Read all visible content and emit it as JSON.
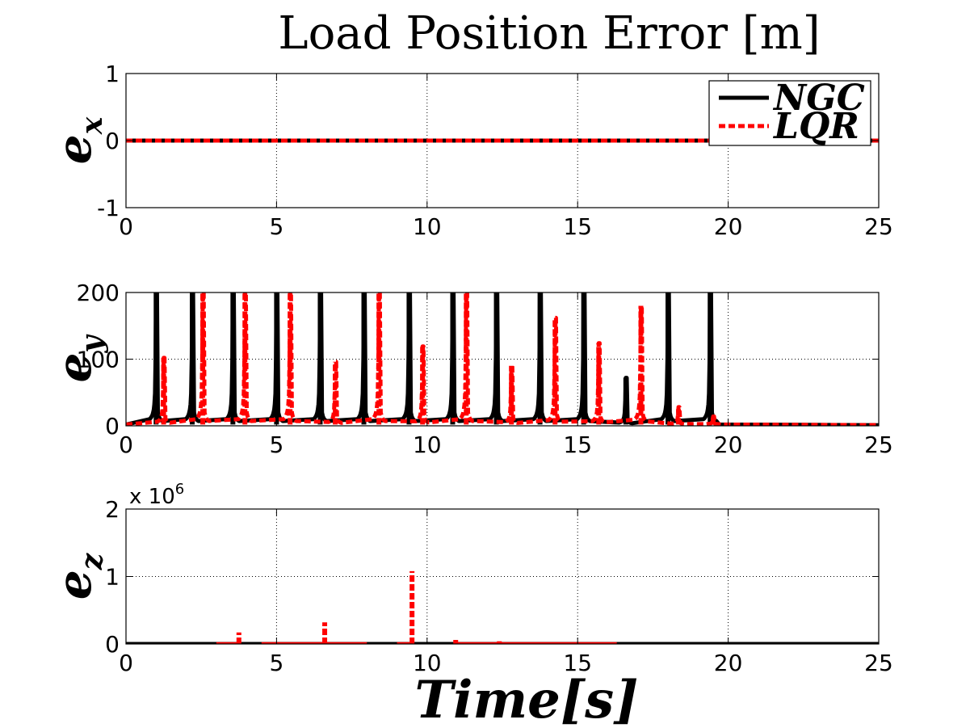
{
  "chart_data": [
    {
      "type": "line",
      "title": "Load Position Error [m]",
      "ylabel": "e_x",
      "ylabel_main": "e",
      "ylabel_sub": "x",
      "xlim": [
        0,
        25
      ],
      "ylim": [
        -1,
        1
      ],
      "xticks": [
        "0",
        "5",
        "10",
        "15",
        "20",
        "25"
      ],
      "yticks": [
        "-1",
        "0",
        "1"
      ],
      "grid": true,
      "legend": {
        "placement": "top-right",
        "entries": [
          "NGC",
          "LQR"
        ]
      },
      "series": [
        {
          "name": "NGC",
          "color": "#000000",
          "style": "solid",
          "x": [
            0,
            25
          ],
          "y": [
            0,
            0
          ]
        },
        {
          "name": "LQR",
          "color": "#ff0000",
          "style": "dashed",
          "x": [
            0,
            25
          ],
          "y": [
            0,
            0
          ]
        }
      ]
    },
    {
      "type": "line",
      "ylabel": "e_y",
      "ylabel_main": "e",
      "ylabel_sub": "y",
      "xlim": [
        0,
        25
      ],
      "ylim": [
        0,
        200
      ],
      "xticks": [
        "0",
        "5",
        "10",
        "15",
        "20",
        "25"
      ],
      "yticks": [
        "0",
        "100",
        "200"
      ],
      "grid": true,
      "series": [
        {
          "name": "NGC",
          "color": "#000000",
          "style": "solid",
          "peaks": [
            [
              1.0,
              200
            ],
            [
              2.2,
              200
            ],
            [
              3.55,
              200
            ],
            [
              5.0,
              200
            ],
            [
              6.45,
              200
            ],
            [
              7.9,
              200
            ],
            [
              9.4,
              200
            ],
            [
              10.85,
              200
            ],
            [
              12.3,
              200
            ],
            [
              13.75,
              200
            ],
            [
              15.2,
              200
            ],
            [
              16.6,
              72
            ],
            [
              18.0,
              200
            ],
            [
              19.4,
              200
            ]
          ]
        },
        {
          "name": "LQR",
          "color": "#ff0000",
          "style": "dashed",
          "peaks": [
            [
              1.25,
              102
            ],
            [
              2.55,
              200
            ],
            [
              3.95,
              200
            ],
            [
              5.45,
              200
            ],
            [
              6.95,
              96
            ],
            [
              8.4,
              200
            ],
            [
              9.85,
              119
            ],
            [
              11.3,
              200
            ],
            [
              12.8,
              90
            ],
            [
              14.25,
              162
            ],
            [
              15.7,
              124
            ],
            [
              17.1,
              180
            ],
            [
              18.35,
              28
            ],
            [
              19.5,
              14
            ]
          ]
        }
      ]
    },
    {
      "type": "line",
      "ylabel": "e_z",
      "ylabel_main": "e",
      "ylabel_sub": "z",
      "xlabel": "Time[s]",
      "xlim": [
        0,
        25
      ],
      "ylim": [
        0,
        2
      ],
      "multiplier": "x 10",
      "multiplier_exp": "6",
      "xticks": [
        "0",
        "5",
        "10",
        "15",
        "20",
        "25"
      ],
      "yticks": [
        "0",
        "1",
        "2"
      ],
      "grid": true,
      "series": [
        {
          "name": "NGC",
          "color": "#000000",
          "style": "solid",
          "x": [
            0,
            25
          ],
          "y": [
            0,
            0
          ]
        },
        {
          "name": "LQR",
          "color": "#ff0000",
          "style": "dashed",
          "spikes": [
            [
              3.75,
              0.17
            ],
            [
              6.6,
              0.32
            ],
            [
              9.5,
              1.08
            ],
            [
              10.95,
              0.06
            ],
            [
              12.4,
              0.04
            ],
            [
              15.5,
              0.02
            ]
          ],
          "segments": [
            [
              3.0,
              3.7
            ],
            [
              4.5,
              8.0
            ],
            [
              9.0,
              9.5
            ],
            [
              11.0,
              16.3
            ]
          ]
        }
      ]
    }
  ]
}
